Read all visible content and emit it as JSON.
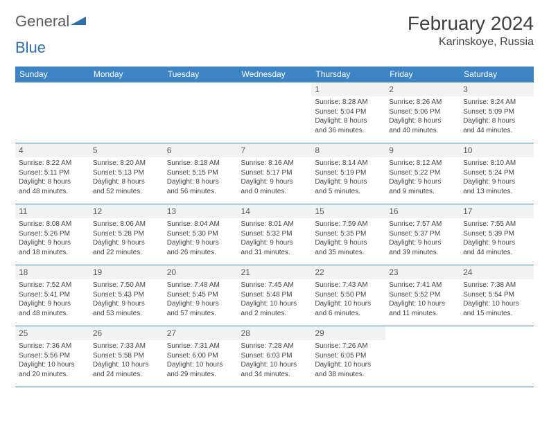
{
  "logo": {
    "text_general": "General",
    "text_blue": "Blue"
  },
  "title": {
    "month": "February 2024",
    "location": "Karinskoye, Russia"
  },
  "dayHeaders": [
    "Sunday",
    "Monday",
    "Tuesday",
    "Wednesday",
    "Thursday",
    "Friday",
    "Saturday"
  ],
  "colors": {
    "header_bg": "#3d84c4",
    "header_text": "#ffffff",
    "text": "#424242",
    "daynum_bg": "#f2f2f2",
    "logo_gray": "#5a5a5a",
    "logo_blue": "#2f6fae"
  },
  "weeks": [
    [
      {
        "d": "",
        "sr": "",
        "ss": "",
        "dl1": "",
        "dl2": ""
      },
      {
        "d": "",
        "sr": "",
        "ss": "",
        "dl1": "",
        "dl2": ""
      },
      {
        "d": "",
        "sr": "",
        "ss": "",
        "dl1": "",
        "dl2": ""
      },
      {
        "d": "",
        "sr": "",
        "ss": "",
        "dl1": "",
        "dl2": ""
      },
      {
        "d": "1",
        "sr": "Sunrise: 8:28 AM",
        "ss": "Sunset: 5:04 PM",
        "dl1": "Daylight: 8 hours",
        "dl2": "and 36 minutes."
      },
      {
        "d": "2",
        "sr": "Sunrise: 8:26 AM",
        "ss": "Sunset: 5:06 PM",
        "dl1": "Daylight: 8 hours",
        "dl2": "and 40 minutes."
      },
      {
        "d": "3",
        "sr": "Sunrise: 8:24 AM",
        "ss": "Sunset: 5:09 PM",
        "dl1": "Daylight: 8 hours",
        "dl2": "and 44 minutes."
      }
    ],
    [
      {
        "d": "4",
        "sr": "Sunrise: 8:22 AM",
        "ss": "Sunset: 5:11 PM",
        "dl1": "Daylight: 8 hours",
        "dl2": "and 48 minutes."
      },
      {
        "d": "5",
        "sr": "Sunrise: 8:20 AM",
        "ss": "Sunset: 5:13 PM",
        "dl1": "Daylight: 8 hours",
        "dl2": "and 52 minutes."
      },
      {
        "d": "6",
        "sr": "Sunrise: 8:18 AM",
        "ss": "Sunset: 5:15 PM",
        "dl1": "Daylight: 8 hours",
        "dl2": "and 56 minutes."
      },
      {
        "d": "7",
        "sr": "Sunrise: 8:16 AM",
        "ss": "Sunset: 5:17 PM",
        "dl1": "Daylight: 9 hours",
        "dl2": "and 0 minutes."
      },
      {
        "d": "8",
        "sr": "Sunrise: 8:14 AM",
        "ss": "Sunset: 5:19 PM",
        "dl1": "Daylight: 9 hours",
        "dl2": "and 5 minutes."
      },
      {
        "d": "9",
        "sr": "Sunrise: 8:12 AM",
        "ss": "Sunset: 5:22 PM",
        "dl1": "Daylight: 9 hours",
        "dl2": "and 9 minutes."
      },
      {
        "d": "10",
        "sr": "Sunrise: 8:10 AM",
        "ss": "Sunset: 5:24 PM",
        "dl1": "Daylight: 9 hours",
        "dl2": "and 13 minutes."
      }
    ],
    [
      {
        "d": "11",
        "sr": "Sunrise: 8:08 AM",
        "ss": "Sunset: 5:26 PM",
        "dl1": "Daylight: 9 hours",
        "dl2": "and 18 minutes."
      },
      {
        "d": "12",
        "sr": "Sunrise: 8:06 AM",
        "ss": "Sunset: 5:28 PM",
        "dl1": "Daylight: 9 hours",
        "dl2": "and 22 minutes."
      },
      {
        "d": "13",
        "sr": "Sunrise: 8:04 AM",
        "ss": "Sunset: 5:30 PM",
        "dl1": "Daylight: 9 hours",
        "dl2": "and 26 minutes."
      },
      {
        "d": "14",
        "sr": "Sunrise: 8:01 AM",
        "ss": "Sunset: 5:32 PM",
        "dl1": "Daylight: 9 hours",
        "dl2": "and 31 minutes."
      },
      {
        "d": "15",
        "sr": "Sunrise: 7:59 AM",
        "ss": "Sunset: 5:35 PM",
        "dl1": "Daylight: 9 hours",
        "dl2": "and 35 minutes."
      },
      {
        "d": "16",
        "sr": "Sunrise: 7:57 AM",
        "ss": "Sunset: 5:37 PM",
        "dl1": "Daylight: 9 hours",
        "dl2": "and 39 minutes."
      },
      {
        "d": "17",
        "sr": "Sunrise: 7:55 AM",
        "ss": "Sunset: 5:39 PM",
        "dl1": "Daylight: 9 hours",
        "dl2": "and 44 minutes."
      }
    ],
    [
      {
        "d": "18",
        "sr": "Sunrise: 7:52 AM",
        "ss": "Sunset: 5:41 PM",
        "dl1": "Daylight: 9 hours",
        "dl2": "and 48 minutes."
      },
      {
        "d": "19",
        "sr": "Sunrise: 7:50 AM",
        "ss": "Sunset: 5:43 PM",
        "dl1": "Daylight: 9 hours",
        "dl2": "and 53 minutes."
      },
      {
        "d": "20",
        "sr": "Sunrise: 7:48 AM",
        "ss": "Sunset: 5:45 PM",
        "dl1": "Daylight: 9 hours",
        "dl2": "and 57 minutes."
      },
      {
        "d": "21",
        "sr": "Sunrise: 7:45 AM",
        "ss": "Sunset: 5:48 PM",
        "dl1": "Daylight: 10 hours",
        "dl2": "and 2 minutes."
      },
      {
        "d": "22",
        "sr": "Sunrise: 7:43 AM",
        "ss": "Sunset: 5:50 PM",
        "dl1": "Daylight: 10 hours",
        "dl2": "and 6 minutes."
      },
      {
        "d": "23",
        "sr": "Sunrise: 7:41 AM",
        "ss": "Sunset: 5:52 PM",
        "dl1": "Daylight: 10 hours",
        "dl2": "and 11 minutes."
      },
      {
        "d": "24",
        "sr": "Sunrise: 7:38 AM",
        "ss": "Sunset: 5:54 PM",
        "dl1": "Daylight: 10 hours",
        "dl2": "and 15 minutes."
      }
    ],
    [
      {
        "d": "25",
        "sr": "Sunrise: 7:36 AM",
        "ss": "Sunset: 5:56 PM",
        "dl1": "Daylight: 10 hours",
        "dl2": "and 20 minutes."
      },
      {
        "d": "26",
        "sr": "Sunrise: 7:33 AM",
        "ss": "Sunset: 5:58 PM",
        "dl1": "Daylight: 10 hours",
        "dl2": "and 24 minutes."
      },
      {
        "d": "27",
        "sr": "Sunrise: 7:31 AM",
        "ss": "Sunset: 6:00 PM",
        "dl1": "Daylight: 10 hours",
        "dl2": "and 29 minutes."
      },
      {
        "d": "28",
        "sr": "Sunrise: 7:28 AM",
        "ss": "Sunset: 6:03 PM",
        "dl1": "Daylight: 10 hours",
        "dl2": "and 34 minutes."
      },
      {
        "d": "29",
        "sr": "Sunrise: 7:26 AM",
        "ss": "Sunset: 6:05 PM",
        "dl1": "Daylight: 10 hours",
        "dl2": "and 38 minutes."
      },
      {
        "d": "",
        "sr": "",
        "ss": "",
        "dl1": "",
        "dl2": ""
      },
      {
        "d": "",
        "sr": "",
        "ss": "",
        "dl1": "",
        "dl2": ""
      }
    ]
  ]
}
